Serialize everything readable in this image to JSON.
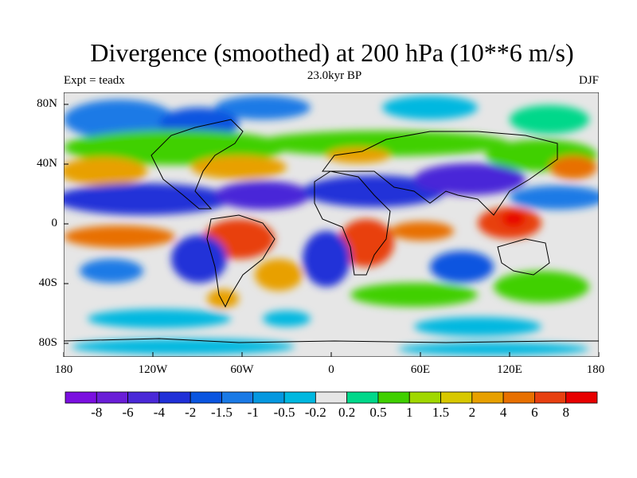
{
  "title": "Divergence (smoothed) at 200 hPa (10**6 m/s)",
  "subtitle_left": "Expt = teadx",
  "subtitle_center": "23.0kyr BP",
  "subtitle_right": "DJF",
  "lat_labels": [
    "80N",
    "40N",
    "0",
    "40S",
    "80S"
  ],
  "lon_labels": [
    "180",
    "120W",
    "60W",
    "0",
    "60E",
    "120E",
    "180"
  ],
  "colorbar": {
    "colors": [
      "#7b0fe0",
      "#6a1ed8",
      "#4a28d8",
      "#2030d8",
      "#0a55e0",
      "#1a7ae6",
      "#0598e0",
      "#00b8e0",
      "#e6e6e6",
      "#00d88a",
      "#40d000",
      "#a0d800",
      "#d8c800",
      "#e8a000",
      "#e87000",
      "#e84010",
      "#e80000"
    ],
    "labels": [
      "-8",
      "-6",
      "-4",
      "-2",
      "-1.5",
      "-1",
      "-0.5",
      "-0.2",
      "0.2",
      "0.5",
      "1",
      "1.5",
      "2",
      "4",
      "6",
      "8"
    ]
  }
}
